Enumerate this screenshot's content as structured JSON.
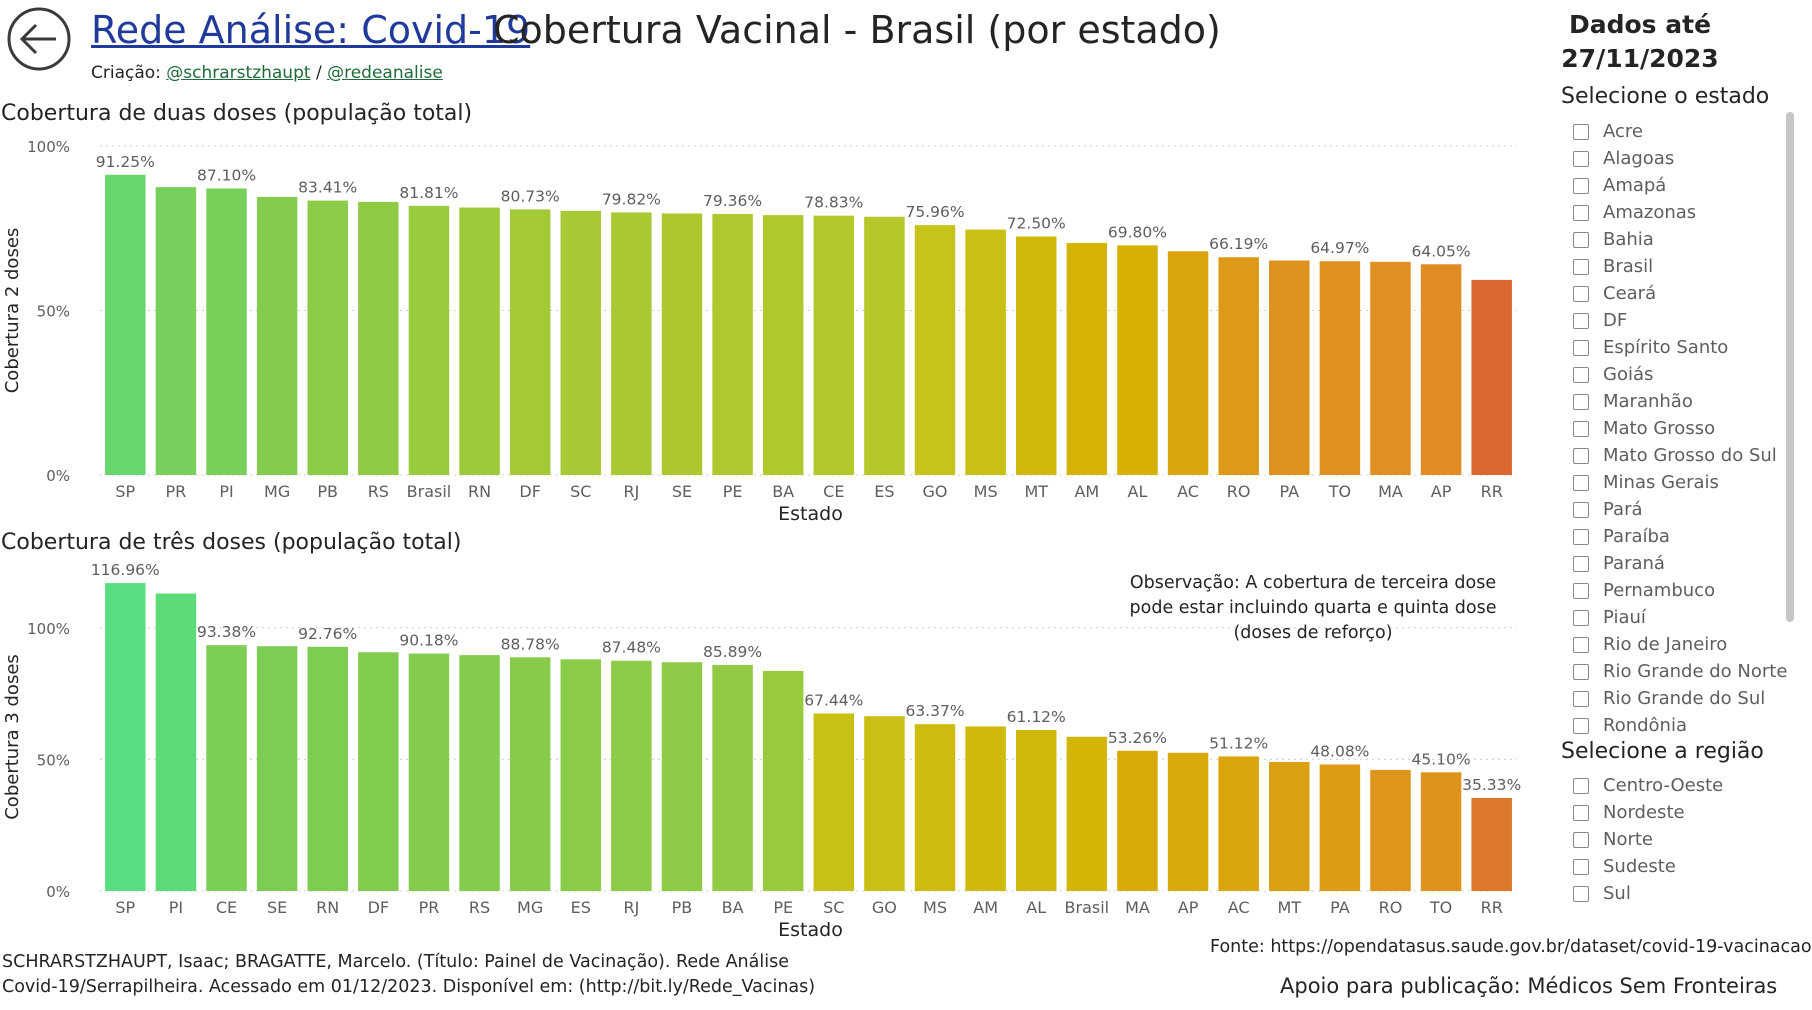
{
  "header": {
    "link_title": "Rede Análise: Covid-19",
    "title": "Cobertura Vacinal - Brasil (por estado)",
    "credits_prefix": "Criação: ",
    "credit_1": "@schrarstzhaupt",
    "credits_sep": " / ",
    "credit_2": "@redeanalise",
    "updated_line1": "Dados até",
    "updated_line2": "27/11/2023",
    "back_icon": "arrow-left-circle-icon"
  },
  "filters": {
    "state_title": "Selecione o estado",
    "states": [
      "Acre",
      "Alagoas",
      "Amapá",
      "Amazonas",
      "Bahia",
      "Brasil",
      "Ceará",
      "DF",
      "Espírito Santo",
      "Goiás",
      "Maranhão",
      "Mato Grosso",
      "Mato Grosso do Sul",
      "Minas Gerais",
      "Pará",
      "Paraíba",
      "Paraná",
      "Pernambuco",
      "Piauí",
      "Rio de Janeiro",
      "Rio Grande do Norte",
      "Rio Grande do Sul",
      "Rondônia"
    ],
    "region_title": "Selecione a região",
    "regions": [
      "Centro-Oeste",
      "Nordeste",
      "Norte",
      "Sudeste",
      "Sul"
    ]
  },
  "note": "Observação: A cobertura de terceira dose pode estar incluindo quarta e quinta dose (doses de reforço)",
  "footer": {
    "citation": "SCHRARSTZHAUPT, Isaac; BRAGATTE, Marcelo. (Título: Painel de Vacinação). Rede Análise Covid-19/Serrapilheira. Acessado em 01/12/2023. Disponível em: (http://bit.ly/Rede_Vacinas)",
    "source": "Fonte: https://opendatasus.saude.gov.br/dataset/covid-19-vacinacao",
    "support": "Apoio para publicação:  Médicos Sem Fronteiras"
  },
  "chart_data": [
    {
      "type": "bar",
      "title": "Cobertura de duas doses (população total)",
      "xlabel": "Estado",
      "ylabel": "Cobertura 2 doses",
      "ylim": [
        0,
        100
      ],
      "yticks": [
        "0%",
        "50%",
        "100%"
      ],
      "grid": true,
      "categories": [
        "SP",
        "PR",
        "PI",
        "MG",
        "PB",
        "RS",
        "Brasil",
        "RN",
        "DF",
        "SC",
        "RJ",
        "SE",
        "PE",
        "BA",
        "CE",
        "ES",
        "GO",
        "MS",
        "MT",
        "AM",
        "AL",
        "AC",
        "RO",
        "PA",
        "TO",
        "MA",
        "AP",
        "RR"
      ],
      "values": [
        91.25,
        87.5,
        87.1,
        84.5,
        83.41,
        83.0,
        81.81,
        81.3,
        80.73,
        80.3,
        79.82,
        79.5,
        79.36,
        79.0,
        78.83,
        78.5,
        75.96,
        74.6,
        72.5,
        70.5,
        69.8,
        68.0,
        66.19,
        65.2,
        64.97,
        64.8,
        64.05,
        59.3
      ],
      "labels": [
        "91.25%",
        "",
        "87.10%",
        "",
        "83.41%",
        "",
        "81.81%",
        "",
        "80.73%",
        "",
        "79.82%",
        "",
        "79.36%",
        "",
        "78.83%",
        "",
        "75.96%",
        "",
        "72.50%",
        "",
        "69.80%",
        "",
        "66.19%",
        "",
        "64.97%",
        "",
        "64.05%",
        ""
      ]
    },
    {
      "type": "bar",
      "title": "Cobertura de três doses (população total)",
      "xlabel": "Estado",
      "ylabel": "Cobertura 3 doses",
      "ylim": [
        0,
        117
      ],
      "yticks": [
        "0%",
        "50%",
        "100%"
      ],
      "grid": true,
      "categories": [
        "SP",
        "PI",
        "CE",
        "SE",
        "RN",
        "DF",
        "PR",
        "RS",
        "MG",
        "ES",
        "RJ",
        "PB",
        "BA",
        "PE",
        "SC",
        "GO",
        "MS",
        "AM",
        "AL",
        "Brasil",
        "MA",
        "AP",
        "AC",
        "MT",
        "PA",
        "RO",
        "TO",
        "RR"
      ],
      "values": [
        116.96,
        113.0,
        93.38,
        93.0,
        92.76,
        90.7,
        90.18,
        89.6,
        88.78,
        88.0,
        87.48,
        86.9,
        85.89,
        83.6,
        67.44,
        66.4,
        63.37,
        62.5,
        61.12,
        58.6,
        53.26,
        52.5,
        51.12,
        49.0,
        48.08,
        46.0,
        45.1,
        35.33
      ],
      "labels": [
        "116.96%",
        "",
        "93.38%",
        "",
        "92.76%",
        "",
        "90.18%",
        "",
        "88.78%",
        "",
        "87.48%",
        "",
        "85.89%",
        "",
        "67.44%",
        "",
        "63.37%",
        "",
        "61.12%",
        "",
        "53.26%",
        "",
        "51.12%",
        "",
        "48.08%",
        "",
        "45.10%",
        "35.33%"
      ]
    }
  ]
}
